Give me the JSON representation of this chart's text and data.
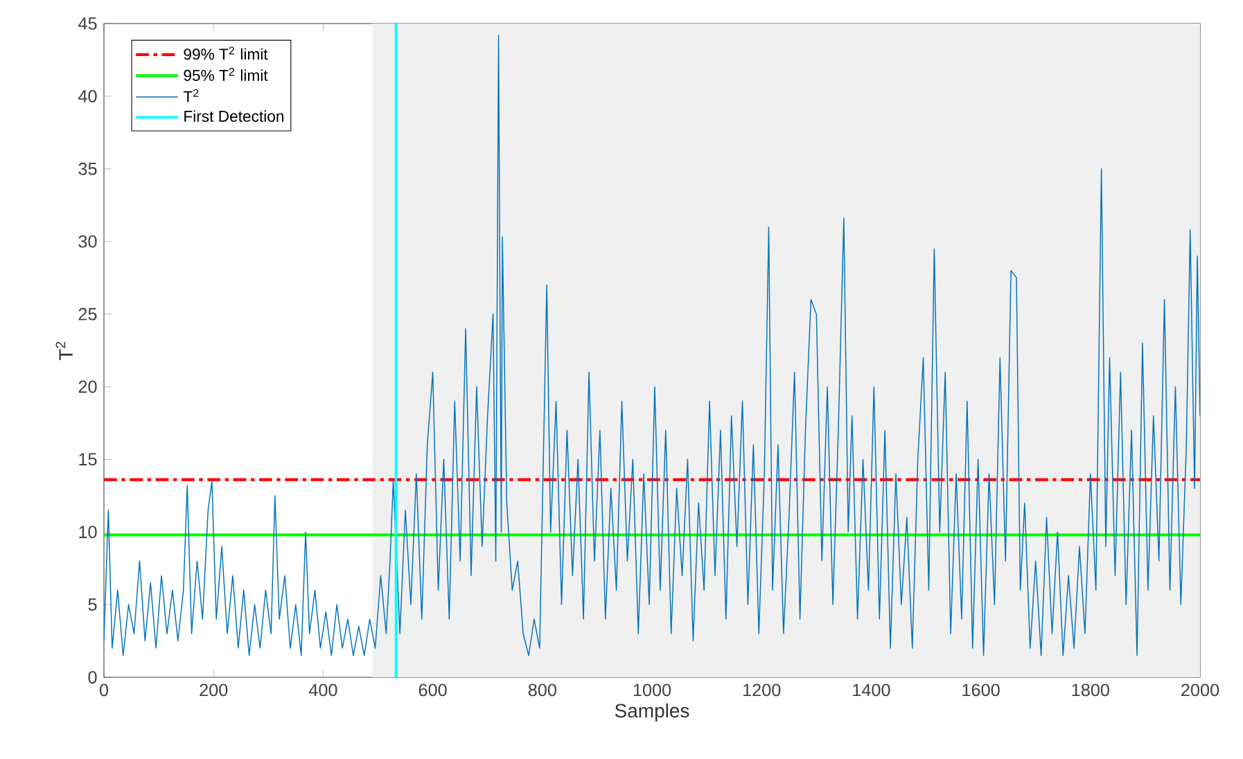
{
  "chart_data": {
    "type": "line",
    "xlabel": "Samples",
    "ylabel": "T$^{2}$",
    "xlim": [
      0,
      2000
    ],
    "ylim": [
      0,
      45
    ],
    "xticks": [
      0,
      200,
      400,
      600,
      800,
      1000,
      1200,
      1400,
      1600,
      1800,
      2000
    ],
    "yticks": [
      0,
      5,
      10,
      15,
      20,
      25,
      30,
      35,
      40,
      45
    ],
    "legend": "top left",
    "grid": false,
    "ref_lines": [
      {
        "axis": "y",
        "value": 13.6,
        "label": "99% T$^{2}$ limit",
        "color": "#ff0000",
        "line_style": "dashdot"
      },
      {
        "axis": "y",
        "value": 9.8,
        "label": "95% T$^{2}$ limit",
        "color": "#00ff00",
        "line_style": "solid"
      }
    ],
    "bands": [
      {
        "axis": "x",
        "from": 490,
        "to": 2000,
        "color": "#f0f0f0"
      }
    ],
    "series": [
      {
        "name": "T$^{2}$",
        "color": "#0072bd",
        "line_style": "solid",
        "x": [
          0,
          8,
          15,
          25,
          35,
          45,
          55,
          65,
          75,
          85,
          95,
          105,
          115,
          125,
          135,
          145,
          152,
          160,
          170,
          180,
          190,
          197,
          205,
          215,
          225,
          235,
          245,
          255,
          265,
          275,
          285,
          295,
          305,
          312,
          320,
          330,
          340,
          350,
          360,
          368,
          375,
          385,
          395,
          405,
          415,
          425,
          435,
          445,
          455,
          465,
          475,
          485,
          495,
          505,
          515,
          522,
          528,
          540,
          550,
          560,
          570,
          580,
          590,
          600,
          610,
          620,
          630,
          640,
          650,
          660,
          670,
          680,
          690,
          700,
          710,
          715,
          720,
          725,
          727,
          735,
          745,
          755,
          765,
          775,
          785,
          795,
          808,
          815,
          825,
          835,
          845,
          855,
          865,
          875,
          885,
          895,
          905,
          915,
          925,
          935,
          945,
          955,
          965,
          975,
          985,
          995,
          1005,
          1015,
          1025,
          1035,
          1045,
          1055,
          1065,
          1075,
          1085,
          1095,
          1105,
          1115,
          1125,
          1135,
          1145,
          1155,
          1165,
          1175,
          1185,
          1195,
          1205,
          1213,
          1220,
          1230,
          1240,
          1250,
          1260,
          1270,
          1280,
          1290,
          1300,
          1310,
          1320,
          1330,
          1340,
          1350,
          1358,
          1365,
          1375,
          1385,
          1395,
          1405,
          1415,
          1425,
          1435,
          1445,
          1455,
          1465,
          1475,
          1485,
          1495,
          1505,
          1515,
          1525,
          1535,
          1545,
          1555,
          1565,
          1575,
          1585,
          1595,
          1605,
          1615,
          1625,
          1635,
          1645,
          1655,
          1665,
          1672,
          1680,
          1690,
          1700,
          1710,
          1720,
          1730,
          1740,
          1750,
          1760,
          1770,
          1780,
          1790,
          1800,
          1810,
          1820,
          1828,
          1835,
          1845,
          1855,
          1865,
          1875,
          1885,
          1895,
          1905,
          1915,
          1925,
          1935,
          1945,
          1955,
          1965,
          1975,
          1982,
          1990,
          1995,
          2000
        ],
        "values": [
          2.5,
          11.5,
          2,
          6,
          1.5,
          5,
          3,
          8,
          2.5,
          6.5,
          2,
          7,
          3,
          6,
          2.5,
          6,
          13.2,
          3,
          8,
          4,
          11.5,
          13.5,
          4,
          9,
          3,
          7,
          2,
          6,
          1.5,
          5,
          2,
          6,
          3,
          12.5,
          4,
          7,
          2,
          5,
          1.5,
          10,
          3,
          6,
          2,
          4.5,
          1.5,
          5,
          2,
          4,
          1.5,
          3.5,
          1.5,
          4,
          2,
          7,
          3,
          8,
          13.6,
          3,
          11.5,
          5,
          14,
          4,
          16,
          21,
          6,
          15,
          4,
          19,
          8,
          24,
          7,
          20,
          9,
          18,
          25,
          8,
          44.2,
          10,
          30.3,
          12,
          6,
          8,
          3,
          1.5,
          4,
          2,
          27,
          10,
          19,
          5,
          17,
          7,
          15,
          4,
          21,
          8,
          17,
          4,
          13,
          6,
          19,
          8,
          15,
          3,
          14,
          5,
          20,
          6,
          17,
          3,
          13,
          7,
          15,
          2.5,
          12,
          6,
          19,
          7,
          17,
          4,
          18,
          9,
          19,
          5,
          16,
          3,
          14,
          31,
          6,
          16,
          3,
          11,
          21,
          4,
          17,
          26,
          25,
          8,
          20,
          5,
          17,
          31.6,
          10,
          18,
          4,
          15,
          6,
          20,
          4,
          17,
          2,
          14,
          5,
          11,
          2,
          15,
          22,
          6,
          29.5,
          10,
          21,
          3,
          14,
          4,
          19,
          2,
          15,
          1.5,
          14,
          5,
          22,
          8,
          28,
          27.5,
          6,
          12,
          2,
          8,
          1.5,
          11,
          3,
          10,
          1.5,
          7,
          2,
          9,
          3,
          14,
          6,
          35,
          9,
          22,
          7,
          21,
          5,
          17,
          1.5,
          23,
          6,
          18,
          8,
          26,
          6,
          20,
          5,
          16,
          30.8,
          13,
          29,
          18
        ]
      },
      {
        "name": "First Detection",
        "type": "line",
        "color": "#00ffff",
        "line_style": "solid",
        "x": [
          533,
          533
        ],
        "values": [
          0,
          45
        ]
      }
    ]
  }
}
